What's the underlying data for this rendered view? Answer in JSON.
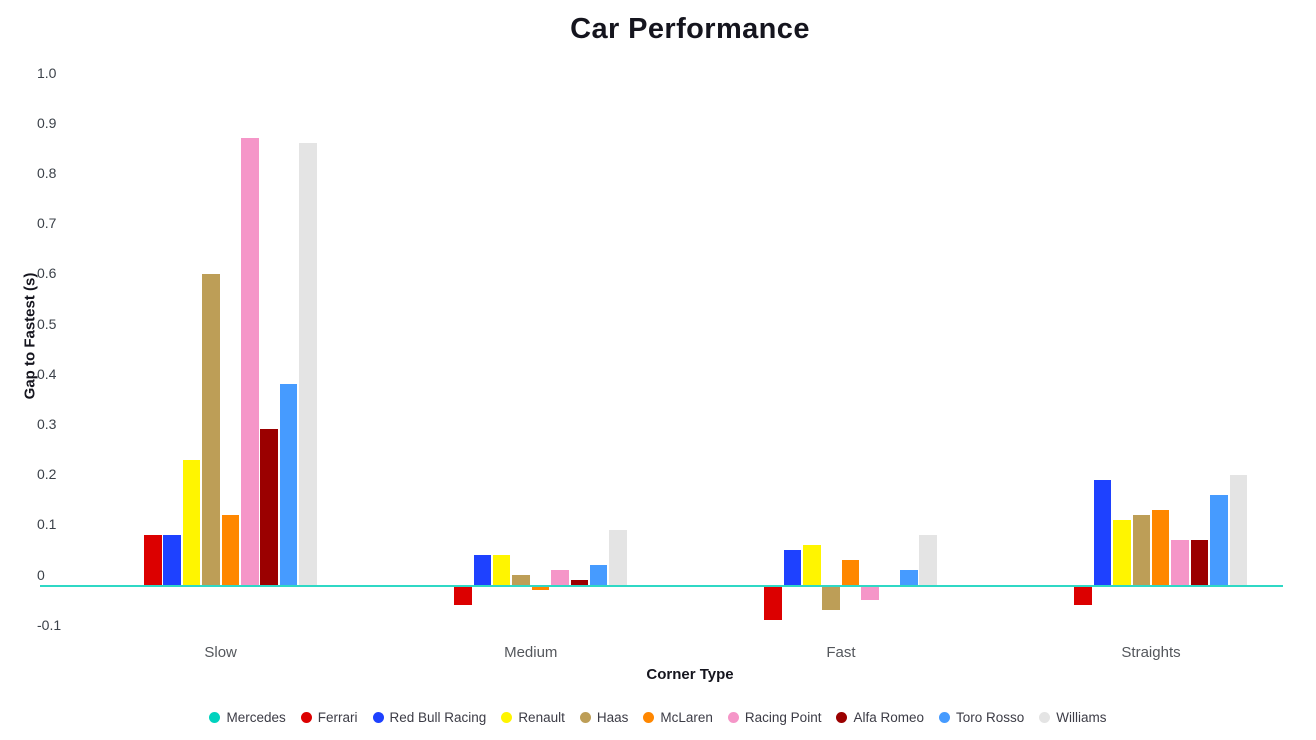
{
  "title": "Car Performance",
  "chart_data": {
    "type": "bar",
    "title": "Car Performance",
    "xlabel": "Corner Type",
    "ylabel": "Gap to Fastest (s)",
    "categories": [
      "Slow",
      "Medium",
      "Fast",
      "Straights"
    ],
    "y_tick_labels": [
      "1.0",
      "0.9",
      "0.8",
      "0.7",
      "0.6",
      "0.5",
      "0.4",
      "0.3",
      "0.2",
      "0.1",
      "0",
      "-0.1"
    ],
    "y_tick_values": [
      1.0,
      0.9,
      0.8,
      0.7,
      0.6,
      0.5,
      0.4,
      0.3,
      0.2,
      0.1,
      0,
      -0.1
    ],
    "ylim": [
      -0.1,
      1.0
    ],
    "grid": false,
    "legend_position": "bottom",
    "zero_line_color": "#2fd8c5",
    "series": [
      {
        "name": "Mercedes",
        "color": "#00D2BE",
        "values": [
          0,
          0,
          0,
          0
        ]
      },
      {
        "name": "Ferrari",
        "color": "#DC0000",
        "values": [
          0.1,
          -0.04,
          -0.07,
          -0.04
        ]
      },
      {
        "name": "Red Bull Racing",
        "color": "#1E41FF",
        "values": [
          0.1,
          0.06,
          0.07,
          0.21
        ]
      },
      {
        "name": "Renault",
        "color": "#FFF500",
        "values": [
          0.25,
          0.06,
          0.08,
          0.13
        ]
      },
      {
        "name": "Haas",
        "color": "#BD9E57",
        "values": [
          0.62,
          0.02,
          -0.05,
          0.14
        ]
      },
      {
        "name": "McLaren",
        "color": "#FF8700",
        "values": [
          0.14,
          -0.01,
          0.05,
          0.15
        ]
      },
      {
        "name": "Racing Point",
        "color": "#F596C8",
        "values": [
          0.89,
          0.03,
          -0.03,
          0.09
        ]
      },
      {
        "name": "Alfa Romeo",
        "color": "#9B0000",
        "values": [
          0.31,
          0.01,
          0,
          0.09
        ]
      },
      {
        "name": "Toro Rosso",
        "color": "#469BFF",
        "values": [
          0.4,
          0.04,
          0.03,
          0.18
        ]
      },
      {
        "name": "Williams",
        "color": "#E4E4E4",
        "values": [
          0.88,
          0.11,
          0.1,
          0.22
        ]
      }
    ]
  },
  "colors": {
    "title": "#15151e",
    "tick_label": "#3b4149",
    "category_label": "#54575c",
    "legend_label": "#3c3c46",
    "background": "#ffffff"
  }
}
